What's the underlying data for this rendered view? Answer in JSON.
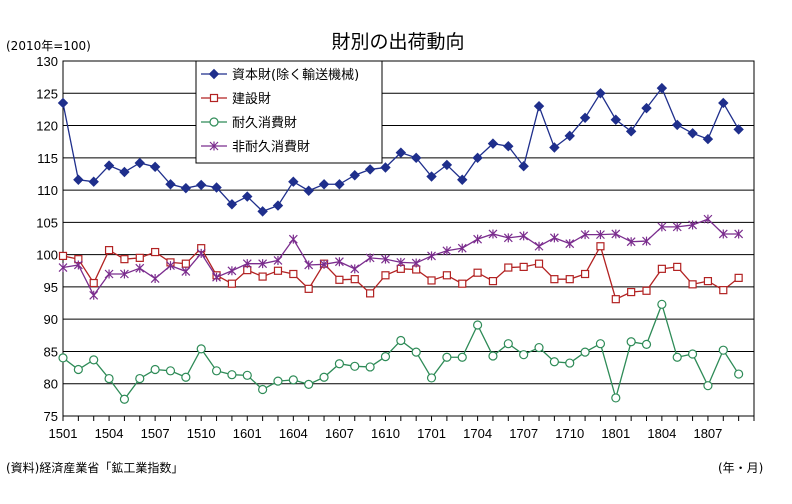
{
  "chart_data": {
    "type": "line",
    "title": "財別の出荷動向",
    "unit_label": "(2010年=100)",
    "xlabel": "(年・月)",
    "source": "(資料)経済産業省「鉱工業指数」",
    "ylim": [
      75,
      130
    ],
    "yticks": [
      75,
      80,
      85,
      90,
      95,
      100,
      105,
      110,
      115,
      120,
      125,
      130
    ],
    "grid": true,
    "legend_position": "top-left",
    "x": [
      "1501",
      "1502",
      "1503",
      "1504",
      "1505",
      "1506",
      "1507",
      "1508",
      "1509",
      "1510",
      "1511",
      "1512",
      "1601",
      "1602",
      "1603",
      "1604",
      "1605",
      "1606",
      "1607",
      "1608",
      "1609",
      "1610",
      "1611",
      "1612",
      "1701",
      "1702",
      "1703",
      "1704",
      "1705",
      "1706",
      "1707",
      "1708",
      "1709",
      "1710",
      "1711",
      "1712",
      "1801",
      "1802",
      "1803",
      "1804",
      "1805",
      "1806",
      "1807",
      "1808",
      "1809"
    ],
    "xtick_labels": [
      "1501",
      "1504",
      "1507",
      "1510",
      "1601",
      "1604",
      "1607",
      "1610",
      "1701",
      "1704",
      "1707",
      "1710",
      "1801",
      "1804",
      "1807"
    ],
    "series": [
      {
        "name": "資本財(除く輸送機械)",
        "color": "#1f2f8c",
        "marker": "diamond",
        "values": [
          123.5,
          111.6,
          111.3,
          113.8,
          112.8,
          114.2,
          113.6,
          110.9,
          110.3,
          110.8,
          110.4,
          107.8,
          109.0,
          106.7,
          107.6,
          111.3,
          109.9,
          110.9,
          110.9,
          112.3,
          113.2,
          113.5,
          115.8,
          115.0,
          112.1,
          113.9,
          111.6,
          115.0,
          117.2,
          116.8,
          113.7,
          123.0,
          116.6,
          118.4,
          121.2,
          125.0,
          120.9,
          119.1,
          122.7,
          125.8,
          120.1,
          118.8,
          117.9,
          123.5,
          119.4
        ]
      },
      {
        "name": "建設財",
        "color": "#b22222",
        "marker": "square",
        "values": [
          99.8,
          99.3,
          95.6,
          100.7,
          99.3,
          99.5,
          100.4,
          98.8,
          98.6,
          101.0,
          96.8,
          95.5,
          97.6,
          96.6,
          97.5,
          97.0,
          94.7,
          98.6,
          96.1,
          96.2,
          94.0,
          96.8,
          97.8,
          97.7,
          96.0,
          96.8,
          95.5,
          97.2,
          95.9,
          98.0,
          98.1,
          98.6,
          96.2,
          96.2,
          97.0,
          101.3,
          93.1,
          94.2,
          94.4,
          97.8,
          98.1,
          95.4,
          95.9,
          94.5,
          96.4
        ]
      },
      {
        "name": "耐久消費財",
        "color": "#2e8b57",
        "marker": "circle",
        "values": [
          84.0,
          82.2,
          83.7,
          80.8,
          77.6,
          80.8,
          82.2,
          82.0,
          81.0,
          85.4,
          82.0,
          81.4,
          81.3,
          79.1,
          80.4,
          80.6,
          79.9,
          81.0,
          83.1,
          82.7,
          82.6,
          84.2,
          86.7,
          84.9,
          80.9,
          84.1,
          84.1,
          89.1,
          84.3,
          86.2,
          84.5,
          85.6,
          83.4,
          83.2,
          84.9,
          86.2,
          77.8,
          86.5,
          86.1,
          92.3,
          84.1,
          84.6,
          79.7,
          85.2,
          81.5
        ]
      },
      {
        "name": "非耐久消費財",
        "color": "#7b2d8e",
        "marker": "cross",
        "values": [
          98.0,
          98.4,
          93.7,
          97.0,
          97.0,
          97.9,
          96.3,
          98.3,
          97.4,
          100.2,
          96.5,
          97.5,
          98.6,
          98.6,
          99.1,
          102.4,
          98.4,
          98.5,
          98.9,
          97.8,
          99.5,
          99.3,
          98.8,
          98.7,
          99.8,
          100.6,
          101.0,
          102.4,
          103.2,
          102.6,
          102.9,
          101.3,
          102.6,
          101.7,
          103.1,
          103.1,
          103.2,
          102.0,
          102.1,
          104.3,
          104.3,
          104.6,
          105.5,
          103.2,
          103.2
        ]
      }
    ]
  }
}
